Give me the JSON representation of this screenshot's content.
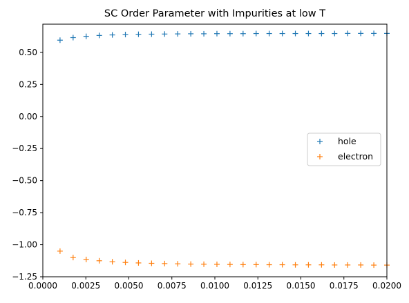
{
  "chart_data": {
    "type": "scatter",
    "title": "SC Order Parameter with Impurities at low T",
    "xlabel": "",
    "ylabel": "",
    "xlim": [
      0,
      0.02
    ],
    "ylim": [
      -1.25,
      0.72
    ],
    "xticks": [
      0.0,
      0.0025,
      0.005,
      0.0075,
      0.01,
      0.0125,
      0.015,
      0.0175,
      0.02
    ],
    "xtick_labels": [
      "0.0000",
      "0.0025",
      "0.0050",
      "0.0075",
      "0.0100",
      "0.0125",
      "0.0150",
      "0.0175",
      "0.0200"
    ],
    "yticks": [
      -1.25,
      -1.0,
      -0.75,
      -0.5,
      -0.25,
      0.0,
      0.25,
      0.5
    ],
    "ytick_labels": [
      "−1.25",
      "−1.00",
      "−0.75",
      "−0.50",
      "−0.25",
      "0.00",
      "0.25",
      "0.50"
    ],
    "grid": false,
    "legend_position": "center-right",
    "marker": "+",
    "x": [
      0.001,
      0.00176,
      0.00252,
      0.00328,
      0.00404,
      0.0048,
      0.00556,
      0.00632,
      0.00708,
      0.00784,
      0.0086,
      0.00936,
      0.01012,
      0.01088,
      0.01164,
      0.0124,
      0.01316,
      0.01392,
      0.01468,
      0.01544,
      0.0162,
      0.01696,
      0.01772,
      0.01848,
      0.01924,
      0.02
    ],
    "series": [
      {
        "name": "hole",
        "color": "#1f77b4",
        "values": [
          0.595,
          0.615,
          0.625,
          0.632,
          0.636,
          0.639,
          0.641,
          0.642,
          0.643,
          0.644,
          0.645,
          0.645,
          0.646,
          0.646,
          0.646,
          0.647,
          0.647,
          0.647,
          0.647,
          0.647,
          0.647,
          0.647,
          0.648,
          0.648,
          0.648,
          0.648
        ]
      },
      {
        "name": "electron",
        "color": "#ff7f0e",
        "values": [
          -1.05,
          -1.1,
          -1.115,
          -1.125,
          -1.133,
          -1.138,
          -1.142,
          -1.145,
          -1.147,
          -1.149,
          -1.151,
          -1.152,
          -1.153,
          -1.154,
          -1.155,
          -1.155,
          -1.156,
          -1.156,
          -1.157,
          -1.157,
          -1.157,
          -1.158,
          -1.158,
          -1.158,
          -1.159,
          -1.159
        ]
      }
    ]
  }
}
